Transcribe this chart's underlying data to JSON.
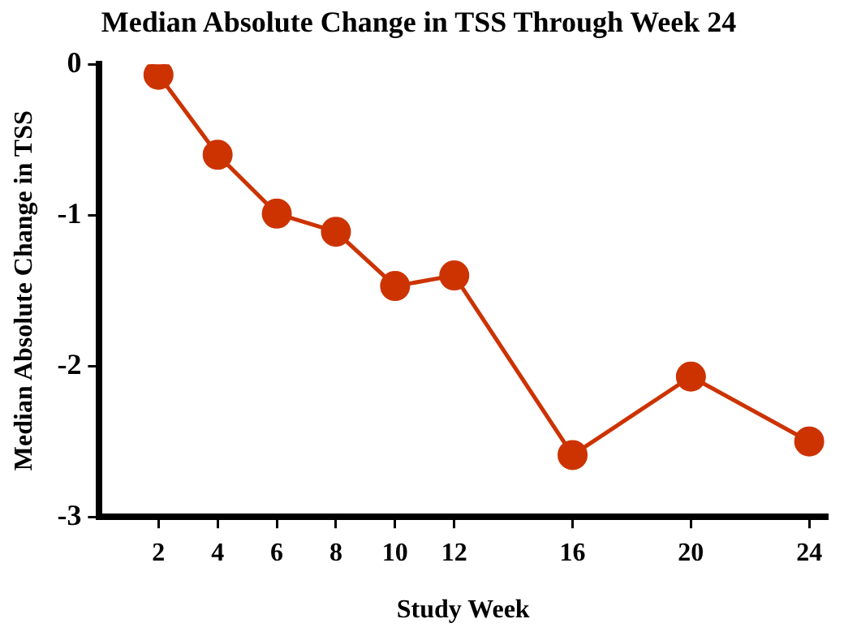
{
  "chart_data": {
    "type": "line",
    "title": "Median Absolute Change in TSS Through Week 24",
    "xlabel": "Study Week",
    "ylabel": "Median Absolute Change in TSS",
    "x": [
      2,
      4,
      6,
      8,
      10,
      12,
      16,
      20,
      24
    ],
    "series": [
      {
        "color": "#cc3300",
        "values": [
          -0.07,
          -0.6,
          -0.99,
          -1.11,
          -1.47,
          -1.4,
          -2.59,
          -2.07,
          -2.5
        ]
      }
    ],
    "xlim": [
      0,
      24.6
    ],
    "xticks": [
      2,
      4,
      6,
      8,
      10,
      12,
      16,
      20,
      24
    ],
    "ylim": [
      -3,
      0
    ],
    "yticks": [
      -3,
      -2,
      -1,
      0
    ],
    "grid": false,
    "legend": false,
    "marker": "circle",
    "line_style": "solid"
  }
}
